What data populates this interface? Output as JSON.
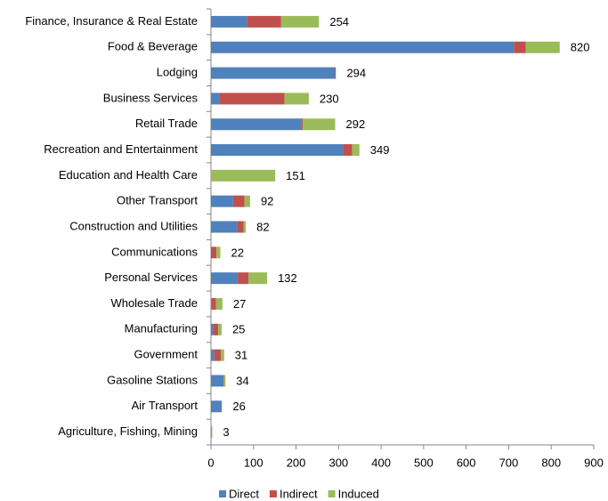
{
  "chart_data": {
    "type": "bar",
    "orientation": "horizontal",
    "stacked": true,
    "categories": [
      "Finance, Insurance & Real Estate",
      "Food & Beverage",
      "Lodging",
      "Business Services",
      "Retail Trade",
      "Recreation and Entertainment",
      "Education and Health Care",
      "Other Transport",
      "Construction and Utilities",
      "Communications",
      "Personal Services",
      "Wholesale Trade",
      "Manufacturing",
      "Government",
      "Gasoline Stations",
      "Air Transport",
      "Agriculture, Fishing, Mining"
    ],
    "series": [
      {
        "name": "Direct",
        "color": "#4f81bd",
        "values": [
          85,
          712,
          291,
          20,
          213,
          310,
          0,
          52,
          61,
          0,
          63,
          2,
          5,
          8,
          30,
          24,
          1
        ]
      },
      {
        "name": "Indirect",
        "color": "#c0504d",
        "values": [
          80,
          28,
          2,
          153,
          3,
          22,
          0,
          27,
          16,
          13,
          25,
          10,
          12,
          15,
          1,
          1,
          0
        ]
      },
      {
        "name": "Induced",
        "color": "#9bbb59",
        "values": [
          89,
          80,
          1,
          57,
          76,
          17,
          151,
          13,
          5,
          9,
          44,
          15,
          8,
          8,
          3,
          1,
          2
        ]
      }
    ],
    "totals": [
      254,
      820,
      294,
      230,
      292,
      349,
      151,
      92,
      82,
      22,
      132,
      27,
      25,
      31,
      34,
      26,
      3
    ],
    "xlim": [
      0,
      900
    ],
    "xticks": [
      0,
      100,
      200,
      300,
      400,
      500,
      600,
      700,
      800,
      900
    ],
    "legend": "bottom"
  }
}
